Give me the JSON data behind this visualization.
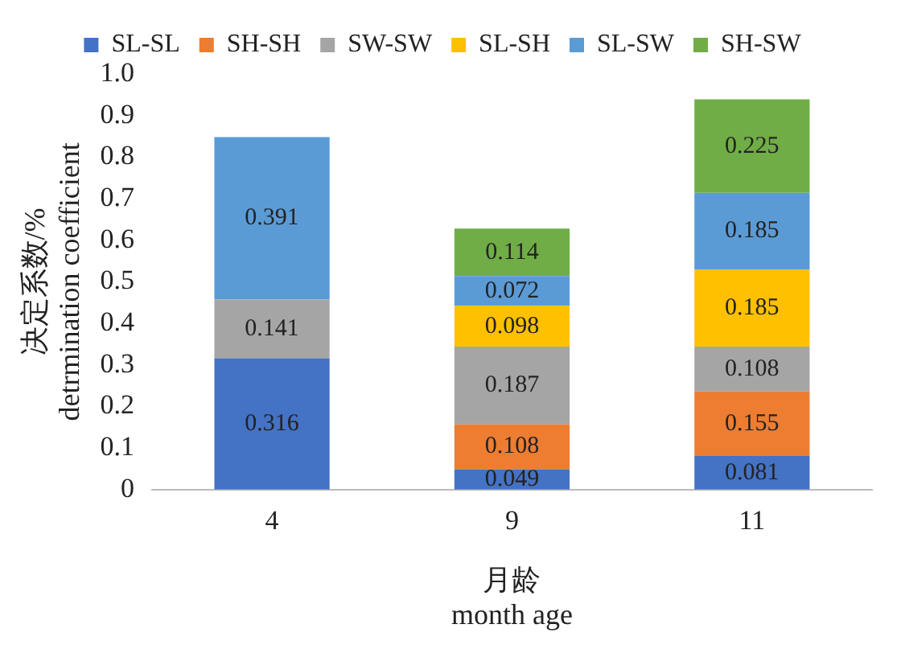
{
  "chart_data": {
    "type": "bar",
    "stacked": true,
    "categories": [
      "4",
      "9",
      "11"
    ],
    "series": [
      {
        "name": "SL-SL",
        "color": "#4472c4",
        "values": [
          0.316,
          0.049,
          0.081
        ]
      },
      {
        "name": "SH-SH",
        "color": "#ed7d31",
        "values": [
          null,
          0.108,
          0.155
        ]
      },
      {
        "name": "SW-SW",
        "color": "#a5a5a5",
        "values": [
          0.141,
          0.187,
          0.108
        ]
      },
      {
        "name": "SL-SH",
        "color": "#ffc000",
        "values": [
          null,
          0.098,
          0.185
        ]
      },
      {
        "name": "SL-SW",
        "color": "#5b9bd5",
        "values": [
          0.391,
          0.072,
          0.185
        ]
      },
      {
        "name": "SH-SW",
        "color": "#70ad47",
        "values": [
          null,
          0.114,
          0.225
        ]
      }
    ],
    "ylim": [
      0,
      1
    ],
    "yticks": [
      0,
      {
        "value": 0.1,
        "label": "0.1"
      },
      {
        "value": 0.2,
        "label": "0.2"
      },
      {
        "value": 0.3,
        "label": "0.3"
      },
      {
        "value": 0.4,
        "label": "0.4"
      },
      {
        "value": 0.5,
        "label": "0.5"
      },
      {
        "value": 0.6,
        "label": "0.6"
      },
      {
        "value": 0.7,
        "label": "0.7"
      },
      {
        "value": 0.8,
        "label": "0.8"
      },
      {
        "value": 0.9,
        "label": "0.9"
      },
      {
        "value": 1,
        "label": "1.0"
      }
    ],
    "ylabel": "决定系数/%\ndetrmination coefficient",
    "xlabel": "月龄\nmonth age",
    "data_labels": true,
    "legend": "top",
    "grid": false
  }
}
